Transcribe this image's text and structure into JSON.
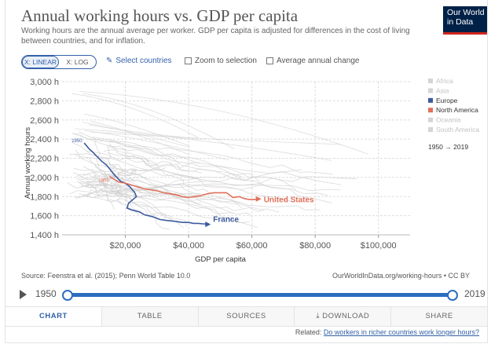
{
  "header": {
    "title": "Annual working hours vs. GDP per capita",
    "subtitle": "Working hours are the annual average per worker. GDP per capita is adjusted for differences in the cost of living between countries, and for inflation.",
    "logo_line1": "Our World",
    "logo_line2": "in Data"
  },
  "controls": {
    "linear_label": "X: LINEAR",
    "log_label": "X: LOG",
    "select_label": "Select countries",
    "zoom_label": "Zoom to selection",
    "avg_label": "Average annual change"
  },
  "colors": {
    "europe": "#3d5a9e",
    "north_america": "#e0705a",
    "grey": "#cfcfcf",
    "accent": "#2c6cc0"
  },
  "chart_data": {
    "type": "scatter",
    "xlabel": "GDP per capita",
    "ylabel": "Annual working hours",
    "xlim": [
      0,
      110000
    ],
    "ylim": [
      1400,
      3000
    ],
    "xticks": [
      20000,
      40000,
      60000,
      80000,
      100000
    ],
    "xtick_labels": [
      "$20,000",
      "$40,000",
      "$60,000",
      "$80,000",
      "$100,000"
    ],
    "yticks": [
      1400,
      1600,
      1800,
      2000,
      2200,
      2400,
      2600,
      2800,
      3000
    ],
    "ytick_labels": [
      "1,400 h",
      "1,600 h",
      "1,800 h",
      "2,000 h",
      "2,200 h",
      "2,400 h",
      "2,600 h",
      "2,800 h",
      "3,000 h"
    ],
    "legend": [
      {
        "name": "Africa",
        "highlight": false
      },
      {
        "name": "Asia",
        "highlight": false
      },
      {
        "name": "Europe",
        "highlight": true
      },
      {
        "name": "North America",
        "highlight": true
      },
      {
        "name": "Oceania",
        "highlight": false
      },
      {
        "name": "South America",
        "highlight": false
      }
    ],
    "time_legend": "1950 → 2019",
    "series": [
      {
        "name": "France",
        "region": "Europe",
        "start_label": "1950",
        "x": [
          7000,
          8500,
          9500,
          11000,
          12500,
          14000,
          15500,
          17000,
          18500,
          20000,
          21500,
          23000,
          23500,
          21000,
          20500,
          22000,
          24500,
          26000,
          28500,
          31000,
          33000,
          36000,
          38000,
          40000,
          41500,
          43000,
          44500,
          46500
        ],
        "y": [
          2360,
          2300,
          2270,
          2220,
          2170,
          2130,
          2070,
          2010,
          1960,
          1940,
          1900,
          1840,
          1800,
          1730,
          1680,
          1660,
          1640,
          1610,
          1590,
          1560,
          1550,
          1540,
          1530,
          1530,
          1520,
          1520,
          1515,
          1510
        ]
      },
      {
        "name": "United States",
        "region": "North America",
        "start_label": "1950",
        "x": [
          15000,
          16500,
          18000,
          20000,
          22000,
          24000,
          26000,
          28000,
          30000,
          32000,
          34000,
          36000,
          38000,
          40000,
          42000,
          44000,
          46000,
          48000,
          50000,
          52000,
          54000,
          56000,
          57500,
          59000,
          61000,
          62500
        ],
        "y": [
          2010,
          1980,
          1950,
          1940,
          1920,
          1900,
          1880,
          1870,
          1860,
          1840,
          1830,
          1820,
          1800,
          1790,
          1800,
          1810,
          1830,
          1840,
          1840,
          1840,
          1790,
          1800,
          1780,
          1770,
          1770,
          1775
        ]
      }
    ],
    "label_france": "France",
    "label_us": "United States"
  },
  "footer": {
    "source": "Source: Feenstra et al. (2015); Penn World Table 10.0",
    "link": "OurWorldInData.org/working-hours • CC BY",
    "year_start": "1950",
    "year_end": "2019",
    "tabs": [
      "CHART",
      "TABLE",
      "SOURCES",
      "DOWNLOAD",
      "SHARE"
    ],
    "related_prefix": "Related:",
    "related_link": "Do workers in richer countries work longer hours?"
  }
}
